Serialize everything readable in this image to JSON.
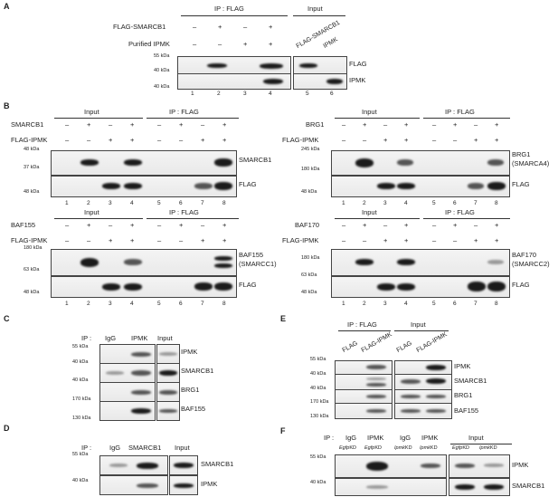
{
  "panel_labels": [
    "A",
    "B",
    "C",
    "D",
    "E",
    "F"
  ],
  "A": {
    "ip_header": "IP : FLAG",
    "input_header": "Input",
    "row_labels": [
      "FLAG-SMARCB1",
      "Purified IPMK"
    ],
    "row1_signs": [
      "–",
      "+",
      "–",
      "+"
    ],
    "row2_signs": [
      "–",
      "–",
      "+",
      "+"
    ],
    "input_lane_labels": [
      "FLAG-SMARCB1",
      "IPMK"
    ],
    "markers": [
      "55 kDa",
      "40 kDa",
      "40 kDa"
    ],
    "blot_labels": [
      "FLAG",
      "IPMK"
    ],
    "lanes": [
      "1",
      "2",
      "3",
      "4",
      "5",
      "6"
    ]
  },
  "B": {
    "input_header": "Input",
    "ip_header": "IP : FLAG",
    "signs_row1": [
      "–",
      "+",
      "–",
      "+",
      "–",
      "+",
      "–",
      "+"
    ],
    "signs_row2": [
      "–",
      "–",
      "+",
      "+",
      "–",
      "–",
      "+",
      "+"
    ],
    "lanes": [
      "1",
      "2",
      "3",
      "4",
      "5",
      "6",
      "7",
      "8"
    ],
    "flag_ipmk_label": "FLAG-IPMK",
    "flag_label": "FLAG",
    "smarcb1": {
      "row_label": "SMARCB1",
      "markers": [
        "48 kDa",
        "37 kDa",
        "48 kDa"
      ],
      "blot_label": "SMARCB1"
    },
    "brg1": {
      "row_label": "BRG1",
      "markers": [
        "245 kDa",
        "180 kDa",
        "48 kDa"
      ],
      "blot_label": "BRG1",
      "blot_sub": "(SMARCA4)"
    },
    "baf155": {
      "row_label": "BAF155",
      "markers": [
        "180 kDa",
        "63 kDa",
        "48 kDa"
      ],
      "blot_label": "BAF155",
      "blot_sub": "(SMARCC1)"
    },
    "baf170": {
      "row_label": "BAF170",
      "markers": [
        "180 kDa",
        "63 kDa",
        "48 kDa"
      ],
      "blot_label": "BAF170",
      "blot_sub": "(SMARCC2)"
    }
  },
  "C": {
    "ip": "IP :",
    "cols": [
      "IgG",
      "IPMK",
      "Input"
    ],
    "markers": [
      "55 kDa",
      "40 kDa",
      "40 kDa",
      "170 kDa",
      "130 kDa"
    ],
    "blot_labels": [
      "IPMK",
      "SMARCB1",
      "BRG1",
      "BAF155"
    ]
  },
  "D": {
    "ip": "IP :",
    "cols": [
      "IgG",
      "SMARCB1",
      "Input"
    ],
    "markers": [
      "55 kDa",
      "40 kDa"
    ],
    "blot_labels": [
      "SMARCB1",
      "IPMK"
    ]
  },
  "E": {
    "ip_header": "IP : FLAG",
    "input_header": "Input",
    "lane_labels": [
      "FLAG",
      "FLAG-IPMK",
      "FLAG",
      "FLAG-IPMK"
    ],
    "markers": [
      "55 kDa",
      "40 kDa",
      "40 kDa",
      "170 kDa",
      "130 kDa"
    ],
    "blot_labels": [
      "IPMK",
      "SMARCB1",
      "BRG1",
      "BAF155"
    ]
  },
  "F": {
    "ip": "IP :",
    "cols": [
      "IgG",
      "IPMK",
      "IgG",
      "IPMK"
    ],
    "input_header": "Input",
    "kd_gene": [
      "Egfp",
      "Egfp",
      "Ipmk",
      "Ipmk",
      "Egfp",
      "Ipmk"
    ],
    "kd_suffix": "KD",
    "markers": [
      "55 kDa",
      "40 kDa"
    ],
    "blot_labels": [
      "IPMK",
      "SMARCB1"
    ]
  }
}
